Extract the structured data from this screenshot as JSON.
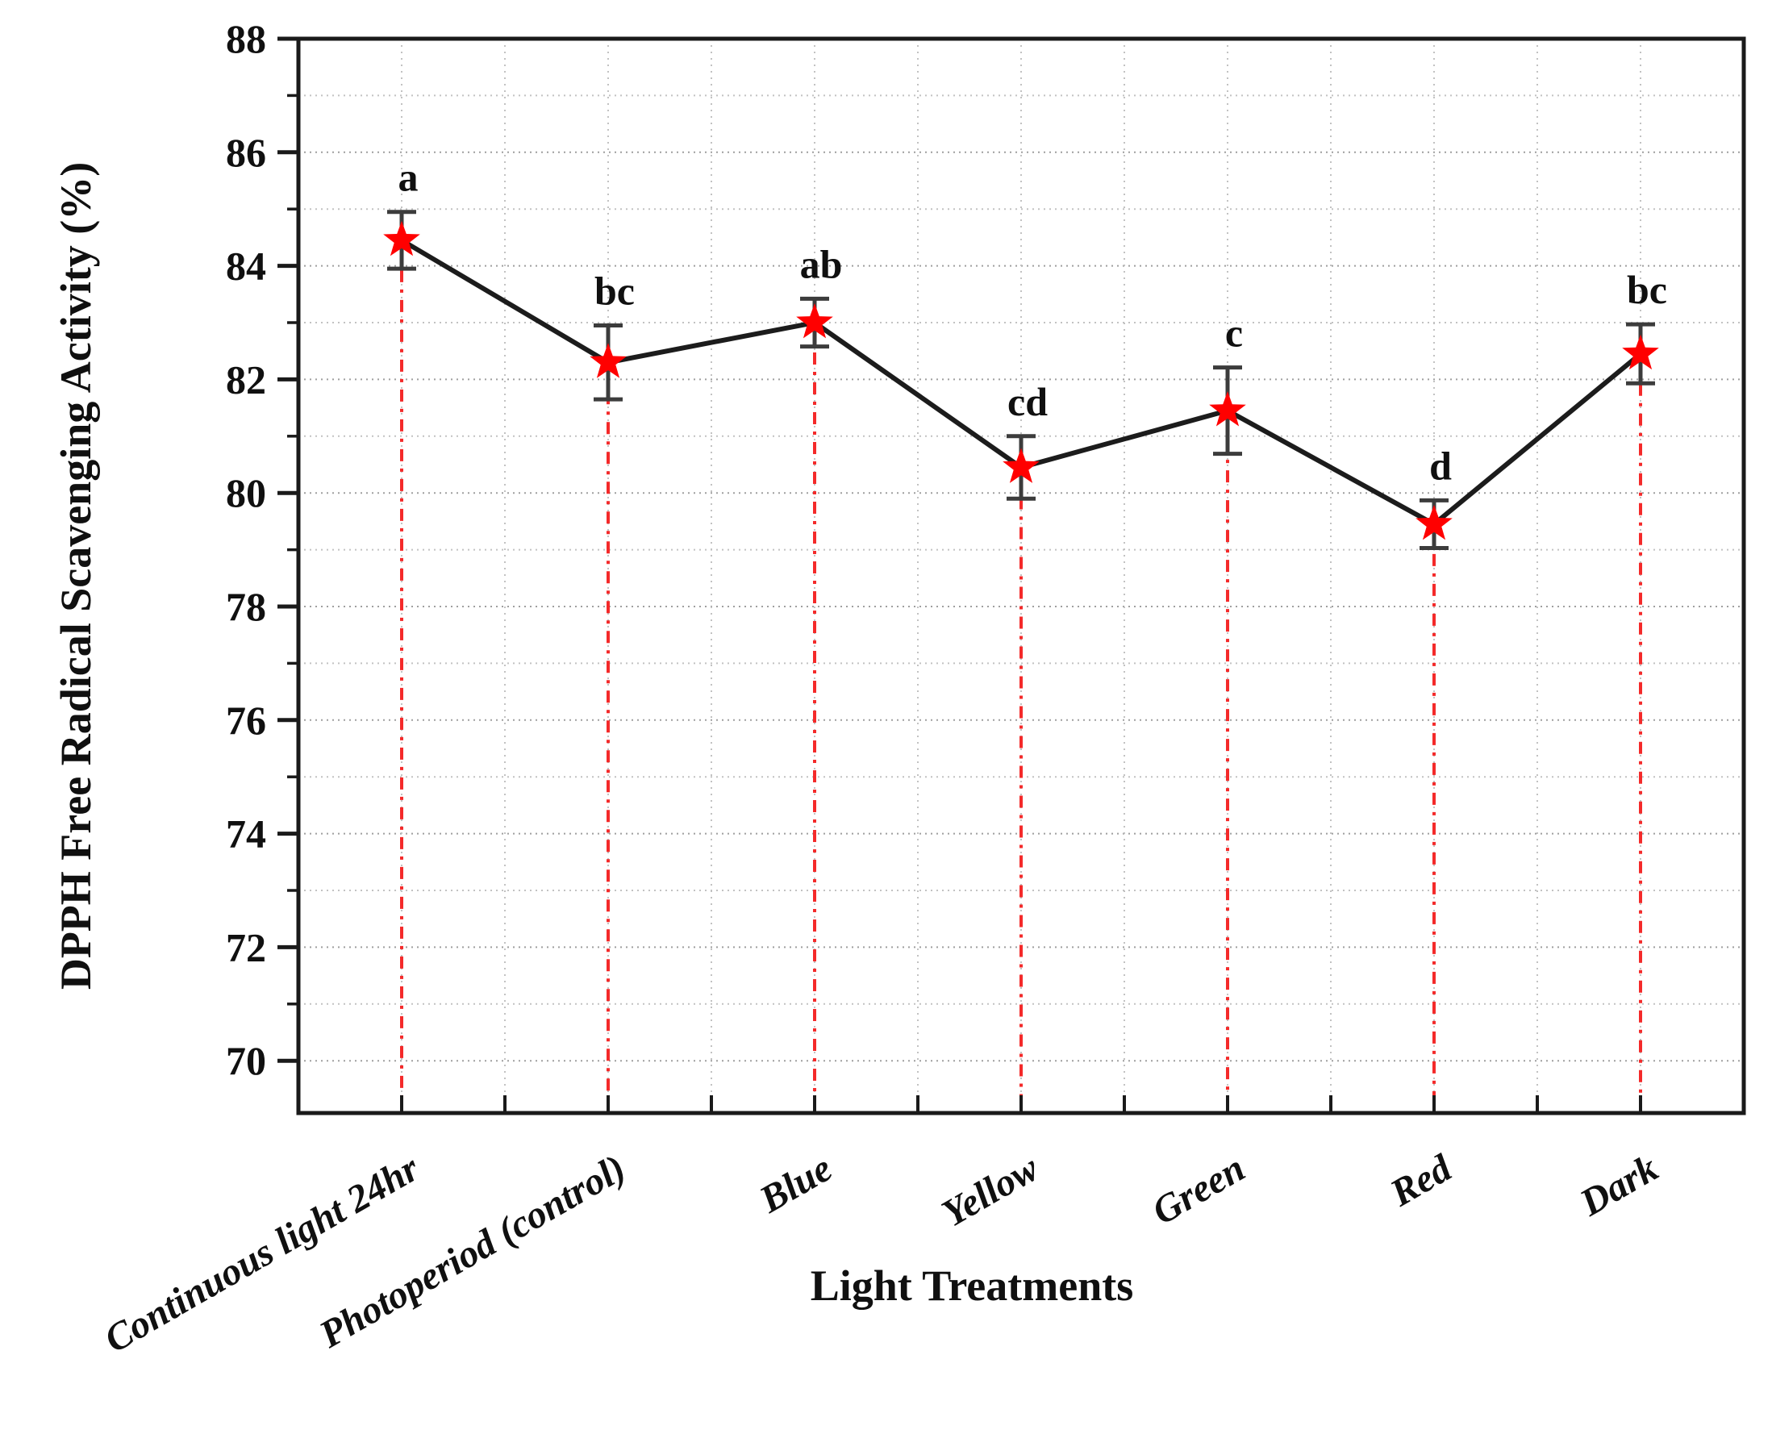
{
  "figure": {
    "background": "#ffffff"
  },
  "chart_data": {
    "type": "line",
    "title": "",
    "categories": [
      "Continuous light 24hr",
      "Photoperiod (control)",
      "Blue",
      "Yellow",
      "Green",
      "Red",
      "Dark"
    ],
    "series": [
      {
        "name": "DPPH Free Radical Scavenging Activity",
        "values": [
          84.45,
          82.3,
          83.0,
          80.45,
          81.45,
          79.45,
          82.45
        ],
        "error_bars": [
          0.5,
          0.65,
          0.42,
          0.55,
          0.76,
          0.42,
          0.52
        ],
        "significance_letters": [
          "a",
          "bc",
          "ab",
          "cd",
          "c",
          "d",
          "bc"
        ]
      }
    ],
    "xlabel": "Light Treatments",
    "ylabel": "DPPH Free Radical Scavenging Activity (%)",
    "ylim": [
      69.08,
      88
    ],
    "ytick_labels": [
      "70",
      "72",
      "74",
      "76",
      "78",
      "80",
      "82",
      "84",
      "86",
      "88"
    ],
    "yticks_major": [
      70,
      72,
      74,
      76,
      78,
      80,
      82,
      84,
      86,
      88
    ],
    "yticks_minor": [
      71,
      73,
      75,
      77,
      79,
      81,
      83,
      85,
      87
    ],
    "grid": "dotted gray grid, horizontal every 1 unit, vertical every half category",
    "legend": "none",
    "marker": "star",
    "colors": {
      "marker": "#ff0000",
      "line": "#1c1c1c",
      "error_bar": "#3c3c3c",
      "drop_line": "#f42a2a",
      "grid_major": "#9f9f9f",
      "grid_minor": "#c2c2c2",
      "spine": "#1a1a1a",
      "text": "#101010"
    }
  }
}
